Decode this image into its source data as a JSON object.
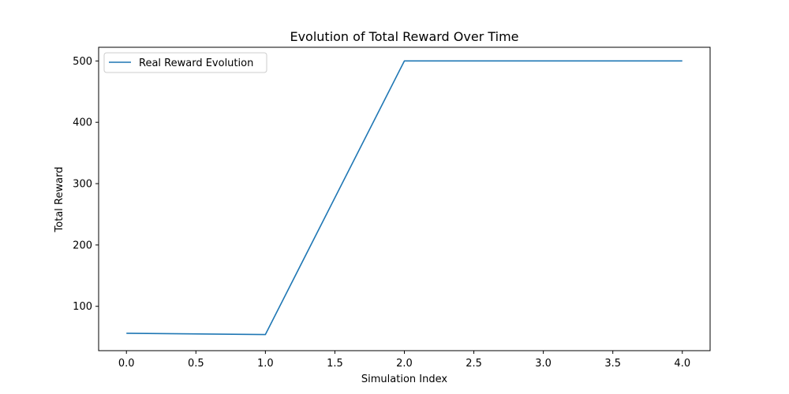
{
  "chart_data": {
    "type": "line",
    "title": "Evolution of Total Reward Over Time",
    "xlabel": "Simulation Index",
    "ylabel": "Total Reward",
    "xlim": [
      -0.2,
      4.2
    ],
    "ylim": [
      27.7,
      522.3
    ],
    "grid": false,
    "legend_position": "top-left",
    "x_ticks": [
      0.0,
      0.5,
      1.0,
      1.5,
      2.0,
      2.5,
      3.0,
      3.5,
      4.0
    ],
    "x_tick_labels": [
      "0.0",
      "0.5",
      "1.0",
      "1.5",
      "2.0",
      "2.5",
      "3.0",
      "3.5",
      "4.0"
    ],
    "y_ticks": [
      100,
      200,
      300,
      400,
      500
    ],
    "y_tick_labels": [
      "100",
      "200",
      "300",
      "400",
      "500"
    ],
    "series": [
      {
        "name": "Real Reward Evolution",
        "color": "#1f77b4",
        "x": [
          0,
          1,
          2,
          3,
          4
        ],
        "y": [
          56,
          54,
          500,
          500,
          500
        ]
      }
    ]
  }
}
